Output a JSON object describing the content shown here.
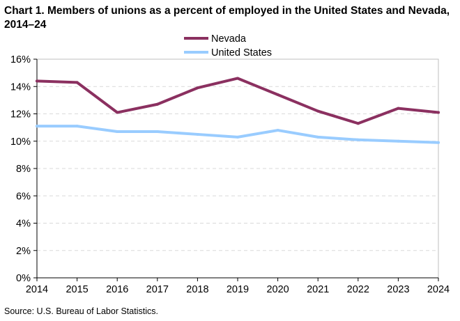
{
  "title": "Chart 1. Members of unions as a percent of employed  in the United States and Nevada, 2014–24",
  "source": "Source:  U.S. Bureau  of Labor Statistics.",
  "chart_data": {
    "type": "line",
    "title": "Chart 1. Members of unions as a percent of employed  in the United States and Nevada, 2014–24",
    "xlabel": "",
    "ylabel": "",
    "x": [
      2014,
      2015,
      2016,
      2017,
      2018,
      2019,
      2020,
      2021,
      2022,
      2023,
      2024
    ],
    "x_tick_labels": [
      "2014",
      "2015",
      "2016",
      "2017",
      "2018",
      "2019",
      "2020",
      "2021",
      "2022",
      "2023",
      "2024"
    ],
    "ylim": [
      0,
      16
    ],
    "y_ticks": [
      0,
      2,
      4,
      6,
      8,
      10,
      12,
      14,
      16
    ],
    "y_tick_labels": [
      "0%",
      "2%",
      "4%",
      "6%",
      "8%",
      "10%",
      "12%",
      "14%",
      "16%"
    ],
    "grid": "horizontal dashed",
    "legend_position": "top-center",
    "series": [
      {
        "name": "Nevada",
        "color": "#8B3060",
        "values": [
          14.4,
          14.3,
          12.1,
          12.7,
          13.9,
          14.6,
          13.4,
          12.2,
          11.3,
          12.4,
          12.1
        ]
      },
      {
        "name": "United States",
        "color": "#99CCFF",
        "values": [
          11.1,
          11.1,
          10.7,
          10.7,
          10.5,
          10.3,
          10.8,
          10.3,
          10.1,
          10.0,
          9.9
        ]
      }
    ]
  }
}
